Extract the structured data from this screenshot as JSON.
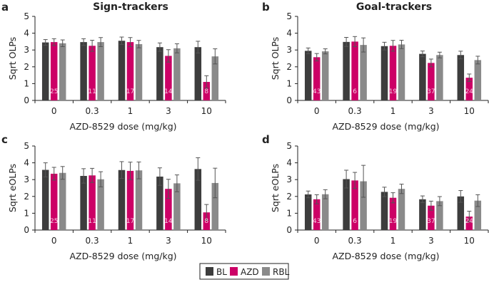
{
  "chart_data": [
    {
      "type": "bar",
      "letter": "a",
      "title": "Sign-trackers",
      "xlabel": "AZD-8529 dose (mg/kg)",
      "ylabel": "Sqrt OLPs",
      "ylim": [
        0,
        5
      ],
      "yticks": [
        0,
        1,
        2,
        3,
        4,
        5
      ],
      "categories": [
        "0",
        "0.3",
        "1",
        "3",
        "10"
      ],
      "n_labels": [
        "25",
        "11",
        "17",
        "14",
        "8"
      ],
      "series": [
        {
          "name": "BL",
          "values": [
            3.45,
            3.47,
            3.55,
            3.17,
            3.17
          ],
          "errors": [
            0.17,
            0.2,
            0.22,
            0.25,
            0.35
          ]
        },
        {
          "name": "AZD",
          "values": [
            3.47,
            3.25,
            3.47,
            2.65,
            1.1
          ],
          "errors": [
            0.2,
            0.33,
            0.27,
            0.37,
            0.37
          ]
        },
        {
          "name": "RBL",
          "values": [
            3.4,
            3.47,
            3.35,
            3.1,
            2.62
          ],
          "errors": [
            0.2,
            0.27,
            0.22,
            0.27,
            0.45
          ]
        }
      ]
    },
    {
      "type": "bar",
      "letter": "b",
      "title": "Goal-trackers",
      "xlabel": "AZD-8529 dose (mg/kg)",
      "ylabel": "Sqrt OLPs",
      "ylim": [
        0,
        5
      ],
      "yticks": [
        0,
        1,
        2,
        3,
        4,
        5
      ],
      "categories": [
        "0",
        "0.3",
        "1",
        "3",
        "10"
      ],
      "n_labels": [
        "43",
        "6",
        "19",
        "37",
        "24"
      ],
      "series": [
        {
          "name": "BL",
          "values": [
            2.95,
            3.48,
            3.23,
            2.77,
            2.7
          ],
          "errors": [
            0.17,
            0.27,
            0.23,
            0.17,
            0.23
          ]
        },
        {
          "name": "AZD",
          "values": [
            2.57,
            3.5,
            3.25,
            2.23,
            1.35
          ],
          "errors": [
            0.22,
            0.3,
            0.32,
            0.23,
            0.22
          ]
        },
        {
          "name": "RBL",
          "values": [
            2.92,
            3.3,
            3.33,
            2.7,
            2.4
          ],
          "errors": [
            0.15,
            0.42,
            0.25,
            0.17,
            0.23
          ]
        }
      ]
    },
    {
      "type": "bar",
      "letter": "c",
      "title": "",
      "xlabel": "AZD-8529 dose (mg/kg)",
      "ylabel": "Sqrt eOLPs",
      "ylim": [
        0,
        5
      ],
      "yticks": [
        0,
        1,
        2,
        3,
        4,
        5
      ],
      "categories": [
        "0",
        "0.3",
        "1",
        "3",
        "10"
      ],
      "n_labels": [
        "25",
        "11",
        "17",
        "14",
        "8"
      ],
      "series": [
        {
          "name": "BL",
          "values": [
            3.58,
            3.22,
            3.57,
            3.18,
            3.63
          ],
          "errors": [
            0.42,
            0.43,
            0.5,
            0.52,
            0.67
          ]
        },
        {
          "name": "AZD",
          "values": [
            3.35,
            3.25,
            3.52,
            2.45,
            1.05
          ],
          "errors": [
            0.38,
            0.42,
            0.52,
            0.57,
            0.47
          ]
        },
        {
          "name": "RBL",
          "values": [
            3.4,
            3.02,
            3.55,
            2.78,
            2.8
          ],
          "errors": [
            0.38,
            0.45,
            0.5,
            0.5,
            0.88
          ]
        }
      ]
    },
    {
      "type": "bar",
      "letter": "d",
      "title": "",
      "xlabel": "AZD-8529 dose (mg/kg)",
      "ylabel": "Sqrt eOLPs",
      "ylim": [
        0,
        5
      ],
      "yticks": [
        0,
        1,
        2,
        3,
        4,
        5
      ],
      "categories": [
        "0",
        "0.3",
        "1",
        "3",
        "10"
      ],
      "n_labels": [
        "43",
        "6",
        "19",
        "37",
        "24"
      ],
      "series": [
        {
          "name": "BL",
          "values": [
            2.12,
            3.03,
            2.27,
            1.83,
            2.0
          ],
          "errors": [
            0.2,
            0.53,
            0.28,
            0.2,
            0.35
          ]
        },
        {
          "name": "AZD",
          "values": [
            1.83,
            2.95,
            1.92,
            1.45,
            0.8
          ],
          "errors": [
            0.27,
            0.48,
            0.3,
            0.27,
            0.32
          ]
        },
        {
          "name": "RBL",
          "values": [
            2.13,
            2.9,
            2.45,
            1.72,
            1.75
          ],
          "errors": [
            0.27,
            0.95,
            0.28,
            0.27,
            0.35
          ]
        }
      ]
    }
  ],
  "legend": {
    "placement": "bottom-center",
    "items": [
      {
        "label": "BL",
        "color": "#3d3d3d"
      },
      {
        "label": "AZD",
        "color": "#cc0066"
      },
      {
        "label": "RBL",
        "color": "#8a8a8a"
      }
    ]
  },
  "colors": {
    "error_bar": "#555555",
    "axis": "#222222"
  }
}
